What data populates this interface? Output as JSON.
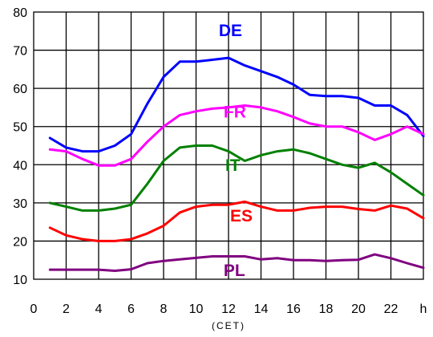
{
  "chart_data": {
    "type": "line",
    "title": "",
    "xlabel": "(CET)",
    "ylabel": "",
    "xlim": [
      0,
      24
    ],
    "ylim": [
      10,
      80
    ],
    "x_ticks": [
      {
        "value": 0,
        "label": "0"
      },
      {
        "value": 2,
        "label": "2"
      },
      {
        "value": 4,
        "label": "4"
      },
      {
        "value": 6,
        "label": "6"
      },
      {
        "value": 8,
        "label": "8"
      },
      {
        "value": 10,
        "label": "10"
      },
      {
        "value": 12,
        "label": "12"
      },
      {
        "value": 14,
        "label": "14"
      },
      {
        "value": 16,
        "label": "16"
      },
      {
        "value": 18,
        "label": "18"
      },
      {
        "value": 20,
        "label": "20"
      },
      {
        "value": 22,
        "label": "22"
      },
      {
        "value": 24,
        "label": "h"
      }
    ],
    "y_ticks": [
      10,
      20,
      30,
      40,
      50,
      60,
      70,
      80
    ],
    "grid": true,
    "x": [
      1,
      2,
      3,
      4,
      5,
      6,
      7,
      8,
      9,
      10,
      11,
      12,
      13,
      14,
      15,
      16,
      17,
      18,
      19,
      20,
      21,
      22,
      23,
      24
    ],
    "series": [
      {
        "name": "DE",
        "color": "#0000ff",
        "label_at": [
          11.4,
          73.7
        ],
        "values": [
          47,
          44.5,
          43.5,
          43.5,
          45,
          48,
          56,
          63,
          67,
          67,
          67.5,
          68,
          66,
          64.5,
          63,
          61,
          58.3,
          58,
          58,
          57.5,
          55.5,
          55.5,
          53,
          47.5
        ]
      },
      {
        "name": "FR",
        "color": "#ff00ff",
        "label_at": [
          11.7,
          52.4
        ],
        "values": [
          44,
          43.5,
          41.5,
          39.8,
          39.8,
          41.5,
          46,
          50,
          53,
          54,
          54.7,
          55,
          55.5,
          55,
          54,
          52.5,
          50.8,
          50,
          50,
          48.5,
          46.5,
          48,
          50,
          48
        ]
      },
      {
        "name": "IT",
        "color": "#008000",
        "label_at": [
          11.8,
          38.4
        ],
        "values": [
          30,
          29,
          28,
          28,
          28.5,
          29.5,
          35,
          41,
          44.5,
          45,
          45,
          43.5,
          41,
          42.5,
          43.5,
          44,
          43,
          41.5,
          40,
          39.2,
          40.5,
          38,
          35,
          32
        ]
      },
      {
        "name": "ES",
        "color": "#ff0000",
        "label_at": [
          12.1,
          25.1
        ],
        "values": [
          23.5,
          21.5,
          20.5,
          20,
          20,
          20.5,
          22,
          24,
          27.5,
          29,
          29.5,
          29.5,
          30.3,
          29,
          28,
          28,
          28.7,
          29,
          29,
          28.4,
          28,
          29.3,
          28.5,
          26
        ]
      },
      {
        "name": "PL",
        "color": "#800080",
        "label_at": [
          11.7,
          10.8
        ],
        "values": [
          12.5,
          12.5,
          12.5,
          12.5,
          12.2,
          12.6,
          14.2,
          14.8,
          15.2,
          15.6,
          16,
          16,
          16,
          15.2,
          15.5,
          15,
          15,
          14.8,
          15,
          15.1,
          16.5,
          15.5,
          14.2,
          13
        ]
      }
    ]
  }
}
